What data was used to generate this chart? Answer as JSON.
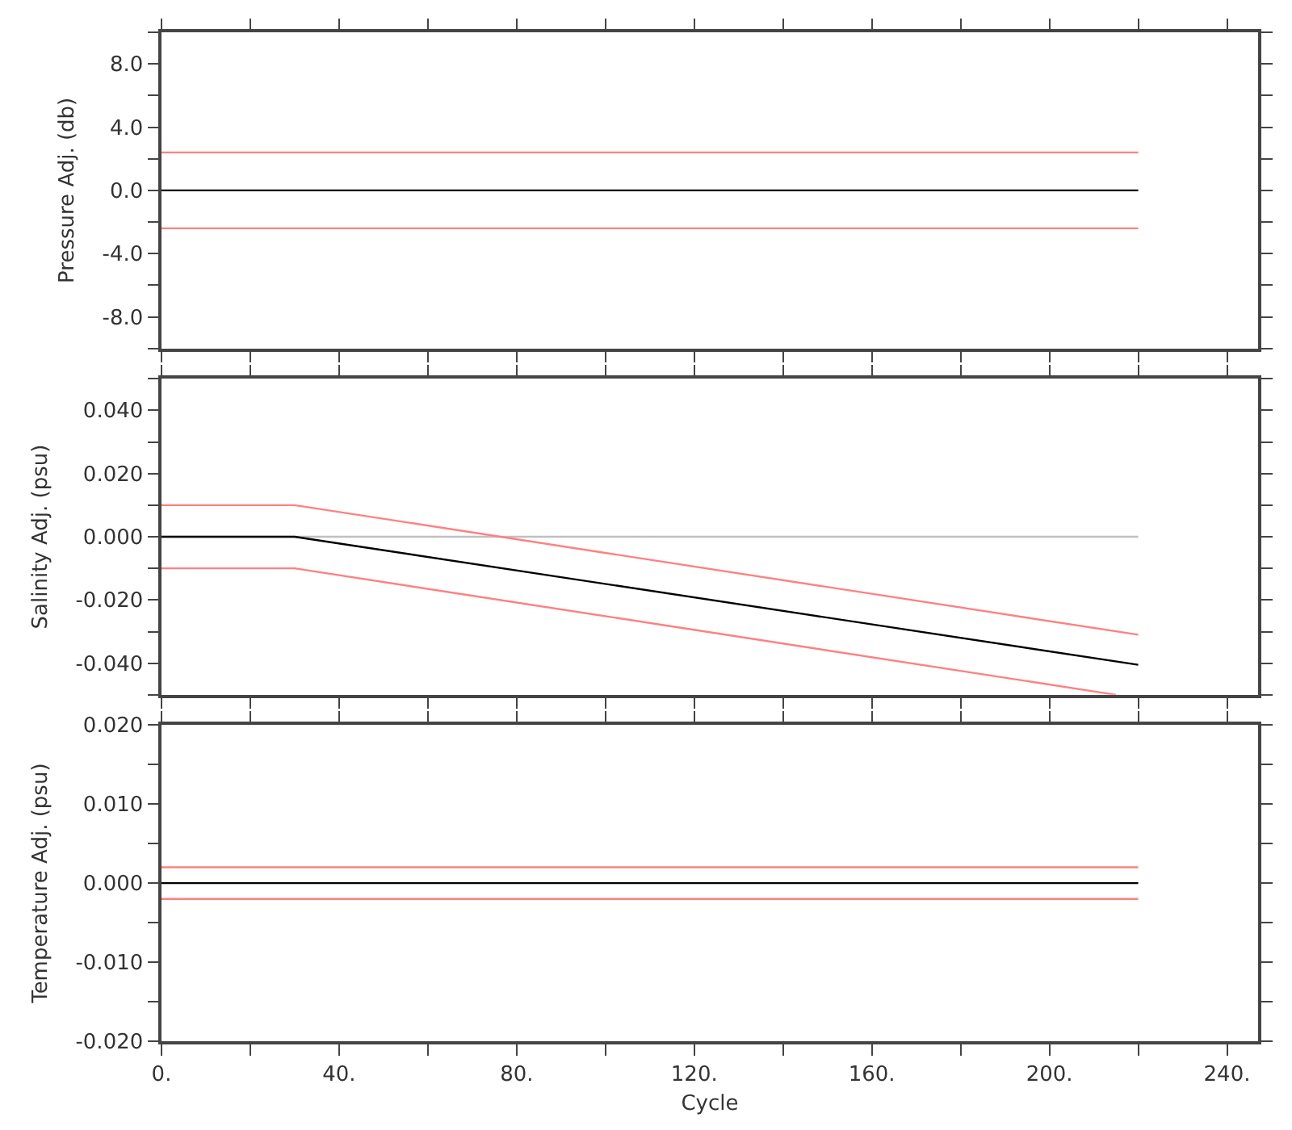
{
  "chart_data": [
    {
      "type": "line",
      "ylabel": "Pressure Adj. (db)",
      "xlim": [
        0,
        247
      ],
      "ylim": [
        -10,
        10
      ],
      "tick_labels": "y",
      "xticks": [
        {
          "value": 0,
          "label": null
        },
        {
          "value": 20,
          "label": null
        },
        {
          "value": 40,
          "label": null
        },
        {
          "value": 60,
          "label": null
        },
        {
          "value": 80,
          "label": null
        },
        {
          "value": 100,
          "label": null
        },
        {
          "value": 120,
          "label": null
        },
        {
          "value": 140,
          "label": null
        },
        {
          "value": 160,
          "label": null
        },
        {
          "value": 180,
          "label": null
        },
        {
          "value": 200,
          "label": null
        },
        {
          "value": 220,
          "label": null
        },
        {
          "value": 240,
          "label": null
        }
      ],
      "yticks": [
        {
          "value": -10,
          "label": null
        },
        {
          "value": -8,
          "label": "-8.0"
        },
        {
          "value": -6,
          "label": null
        },
        {
          "value": -4,
          "label": "-4.0"
        },
        {
          "value": -2,
          "label": null
        },
        {
          "value": 0,
          "label": "0.0"
        },
        {
          "value": 2,
          "label": null
        },
        {
          "value": 4,
          "label": "4.0"
        },
        {
          "value": 6,
          "label": null
        },
        {
          "value": 8,
          "label": "8.0"
        },
        {
          "value": 10,
          "label": null
        }
      ],
      "series": [
        {
          "color": "#ff8080",
          "x": [
            0,
            220
          ],
          "values": [
            2.4,
            2.4
          ]
        },
        {
          "color": "#ff8080",
          "x": [
            0,
            220
          ],
          "values": [
            -2.4,
            -2.4
          ]
        },
        {
          "color": "#000000",
          "x": [
            0,
            220
          ],
          "values": [
            0,
            0
          ]
        }
      ]
    },
    {
      "type": "line",
      "ylabel": "Salinity Adj. (psu)",
      "xlim": [
        0,
        247
      ],
      "ylim": [
        -0.05,
        0.05
      ],
      "tick_labels": "y",
      "xticks": [
        {
          "value": 0,
          "label": null
        },
        {
          "value": 20,
          "label": null
        },
        {
          "value": 40,
          "label": null
        },
        {
          "value": 60,
          "label": null
        },
        {
          "value": 80,
          "label": null
        },
        {
          "value": 100,
          "label": null
        },
        {
          "value": 120,
          "label": null
        },
        {
          "value": 140,
          "label": null
        },
        {
          "value": 160,
          "label": null
        },
        {
          "value": 180,
          "label": null
        },
        {
          "value": 200,
          "label": null
        },
        {
          "value": 220,
          "label": null
        },
        {
          "value": 240,
          "label": null
        }
      ],
      "yticks": [
        {
          "value": -0.05,
          "label": null
        },
        {
          "value": -0.04,
          "label": "-0.040"
        },
        {
          "value": -0.03,
          "label": null
        },
        {
          "value": -0.02,
          "label": "-0.020"
        },
        {
          "value": -0.01,
          "label": null
        },
        {
          "value": 0,
          "label": "0.000"
        },
        {
          "value": 0.01,
          "label": null
        },
        {
          "value": 0.02,
          "label": "0.020"
        },
        {
          "value": 0.03,
          "label": null
        },
        {
          "value": 0.04,
          "label": "0.040"
        },
        {
          "value": 0.05,
          "label": null
        }
      ],
      "series": [
        {
          "color": "#c0c0c0",
          "x": [
            0,
            220
          ],
          "values": [
            0,
            0
          ]
        },
        {
          "color": "#ff8080",
          "x": [
            0,
            30,
            220
          ],
          "values": [
            0.01,
            0.01,
            -0.031
          ]
        },
        {
          "color": "#ff8080",
          "x": [
            0,
            30,
            215
          ],
          "values": [
            -0.01,
            -0.01,
            -0.05
          ]
        },
        {
          "color": "#000000",
          "x": [
            0,
            30,
            220
          ],
          "values": [
            0,
            0,
            -0.0405
          ]
        }
      ]
    },
    {
      "type": "line",
      "ylabel": "Temperature Adj. (psu)",
      "xlabel": "Cycle",
      "xlim": [
        0,
        247
      ],
      "ylim": [
        -0.02,
        0.02
      ],
      "xticks": [
        {
          "value": 0,
          "label": "0."
        },
        {
          "value": 20,
          "label": null
        },
        {
          "value": 40,
          "label": "40."
        },
        {
          "value": 60,
          "label": null
        },
        {
          "value": 80,
          "label": "80."
        },
        {
          "value": 100,
          "label": null
        },
        {
          "value": 120,
          "label": "120."
        },
        {
          "value": 140,
          "label": null
        },
        {
          "value": 160,
          "label": "160."
        },
        {
          "value": 180,
          "label": null
        },
        {
          "value": 200,
          "label": "200."
        },
        {
          "value": 220,
          "label": null
        },
        {
          "value": 240,
          "label": "240."
        }
      ],
      "yticks": [
        {
          "value": -0.02,
          "label": "-0.020"
        },
        {
          "value": -0.015,
          "label": null
        },
        {
          "value": -0.01,
          "label": "-0.010"
        },
        {
          "value": -0.005,
          "label": null
        },
        {
          "value": 0,
          "label": "0.000"
        },
        {
          "value": 0.005,
          "label": null
        },
        {
          "value": 0.01,
          "label": "0.010"
        },
        {
          "value": 0.015,
          "label": null
        },
        {
          "value": 0.02,
          "label": "0.020"
        }
      ],
      "series": [
        {
          "color": "#ff8080",
          "x": [
            0,
            220
          ],
          "values": [
            0.002,
            0.002
          ]
        },
        {
          "color": "#ff8080",
          "x": [
            0,
            220
          ],
          "values": [
            -0.002,
            -0.002
          ]
        },
        {
          "color": "#000000",
          "x": [
            0,
            220
          ],
          "values": [
            0,
            0
          ]
        }
      ]
    }
  ]
}
